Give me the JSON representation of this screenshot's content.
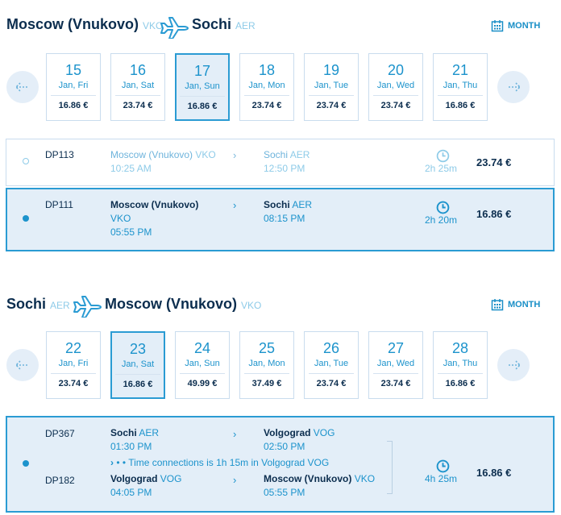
{
  "outbound": {
    "from": "Moscow (Vnukovo)",
    "from_code": "VKO",
    "to": "Sochi",
    "to_code": "AER",
    "month_label": "MONTH",
    "days": [
      {
        "num": "15",
        "wd": "Jan, Fri",
        "price": "16.86 €"
      },
      {
        "num": "16",
        "wd": "Jan, Sat",
        "price": "23.74 €"
      },
      {
        "num": "17",
        "wd": "Jan, Sun",
        "price": "16.86 €"
      },
      {
        "num": "18",
        "wd": "Jan, Mon",
        "price": "23.74 €"
      },
      {
        "num": "19",
        "wd": "Jan, Tue",
        "price": "23.74 €"
      },
      {
        "num": "20",
        "wd": "Jan, Wed",
        "price": "23.74 €"
      },
      {
        "num": "21",
        "wd": "Jan, Thu",
        "price": "16.86 €"
      }
    ],
    "selected_day": "17",
    "flights": [
      {
        "number": "DP113",
        "dep_city": "Moscow (Vnukovo)",
        "dep_code": "VKO",
        "dep_time": "10:25 AM",
        "arr_city": "Sochi",
        "arr_code": "AER",
        "arr_time": "12:50 PM",
        "duration": "2h 25m",
        "price": "23.74 €"
      },
      {
        "number": "DP111",
        "dep_city": "Moscow (Vnukovo)",
        "dep_code": "VKO",
        "dep_time": "05:55 PM",
        "arr_city": "Sochi",
        "arr_code": "AER",
        "arr_time": "08:15 PM",
        "duration": "2h 20m",
        "price": "16.86 €"
      }
    ]
  },
  "inbound": {
    "from": "Sochi",
    "from_code": "AER",
    "to": "Moscow (Vnukovo)",
    "to_code": "VKO",
    "month_label": "MONTH",
    "days": [
      {
        "num": "22",
        "wd": "Jan, Fri",
        "price": "23.74 €"
      },
      {
        "num": "23",
        "wd": "Jan, Sat",
        "price": "16.86 €"
      },
      {
        "num": "24",
        "wd": "Jan, Sun",
        "price": "49.99 €"
      },
      {
        "num": "25",
        "wd": "Jan, Mon",
        "price": "37.49 €"
      },
      {
        "num": "26",
        "wd": "Jan, Tue",
        "price": "23.74 €"
      },
      {
        "num": "27",
        "wd": "Jan, Wed",
        "price": "23.74 €"
      },
      {
        "num": "28",
        "wd": "Jan, Thu",
        "price": "16.86 €"
      }
    ],
    "selected_day": "23",
    "flight": {
      "leg1": {
        "number": "DP367",
        "dep_city": "Sochi",
        "dep_code": "AER",
        "dep_time": "01:30 PM",
        "arr_city": "Volgograd",
        "arr_code": "VOG",
        "arr_time": "02:50 PM"
      },
      "connection": "• • Time connections is 1h 15m in Volgograd VOG",
      "leg2": {
        "number": "DP182",
        "dep_city": "Volgograd",
        "dep_code": "VOG",
        "dep_time": "04:05 PM",
        "arr_city": "Moscow (Vnukovo)",
        "arr_code": "VKO",
        "arr_time": "05:55 PM"
      },
      "duration": "4h 25m",
      "price": "16.86 €"
    }
  },
  "colors": {
    "accent": "#1c93cc",
    "light": "#8ecbe8",
    "dark": "#0b2d4e",
    "selected_bg": "#e3eef8",
    "border": "#c9dcee"
  },
  "icons": {
    "plane": "plane-icon",
    "calendar": "calendar-icon",
    "prev": "arrow-left-icon",
    "next": "arrow-right-icon",
    "clock": "clock-icon"
  }
}
